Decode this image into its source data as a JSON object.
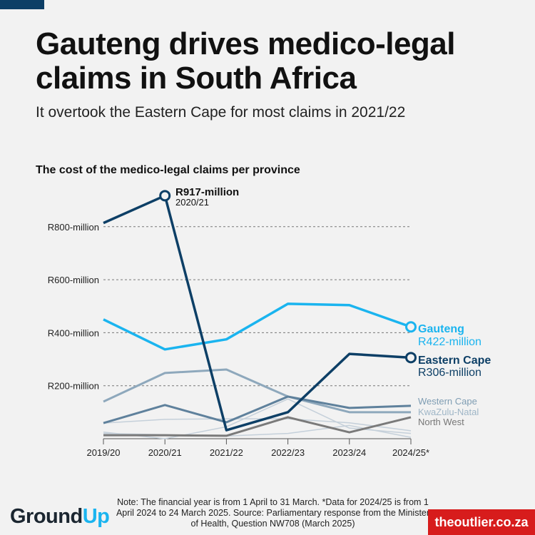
{
  "title": "Gauteng drives medico-legal claims in South Africa",
  "subtitle": "It overtook the Eastern Cape for most claims in 2021/22",
  "chart_data": {
    "type": "line",
    "title": "The cost of the medico-legal claims per province",
    "x": [
      "2019/20",
      "2020/21",
      "2021/22",
      "2022/23",
      "2023/24",
      "2024/25*"
    ],
    "yticks": [
      {
        "value": 200,
        "label": "R200-million"
      },
      {
        "value": 400,
        "label": "R400-million"
      },
      {
        "value": 600,
        "label": "R600-million"
      },
      {
        "value": 800,
        "label": "R800-million"
      }
    ],
    "ylim": [
      0,
      950
    ],
    "grid": "dashed horizontal",
    "series": [
      {
        "name": "",
        "color": "#c5d0da",
        "width": 1.5,
        "values": [
          59,
          73,
          75,
          75,
          60,
          30
        ]
      },
      {
        "name": "",
        "color": "#c5d0da",
        "width": 1.5,
        "values": [
          25,
          0,
          45,
          150,
          40,
          20
        ]
      },
      {
        "name": "",
        "color": "#c5d0da",
        "width": 1.5,
        "values": [
          20,
          15,
          10,
          20,
          50,
          5
        ]
      },
      {
        "name": "North West",
        "color": "#7a7a7a",
        "width": 3,
        "values": [
          13,
          13,
          11,
          81,
          24,
          81
        ]
      },
      {
        "name": "KwaZulu-Natal",
        "color": "#8ea8bc",
        "width": 3,
        "values": [
          140,
          248,
          261,
          159,
          100,
          100
        ]
      },
      {
        "name": "Western Cape",
        "color": "#5f819c",
        "width": 3,
        "values": [
          59,
          127,
          62,
          159,
          116,
          124
        ]
      },
      {
        "name": "Gauteng",
        "color": "#1ab4ef",
        "width": 3.5,
        "values": [
          450,
          337,
          375,
          509,
          504,
          422
        ]
      },
      {
        "name": "Eastern Cape",
        "color": "#0d3f66",
        "width": 3.5,
        "values": [
          814,
          917,
          32,
          100,
          320,
          306
        ]
      }
    ],
    "annotations": {
      "peak": {
        "value_label": "R917-million",
        "period": "2020/21"
      },
      "gauteng": {
        "name": "Gauteng",
        "value_label": "R422-million"
      },
      "eastern_cape": {
        "name": "Eastern Cape",
        "value_label": "R306-million"
      },
      "western_cape": "Western Cape",
      "kzn": "KwaZulu-Natal",
      "north_west": "North West"
    }
  },
  "note": "Note: The financial year is from 1 April to 31 March. *Data for 2024/25 is from 1 April 2024 to 24 March 2025. Source: Parliamentary response from the Minister of Health, Question NW708 (March 2025)",
  "logo": {
    "a": "Ground",
    "b": "Up"
  },
  "outlier": "theoutlier.co.za"
}
